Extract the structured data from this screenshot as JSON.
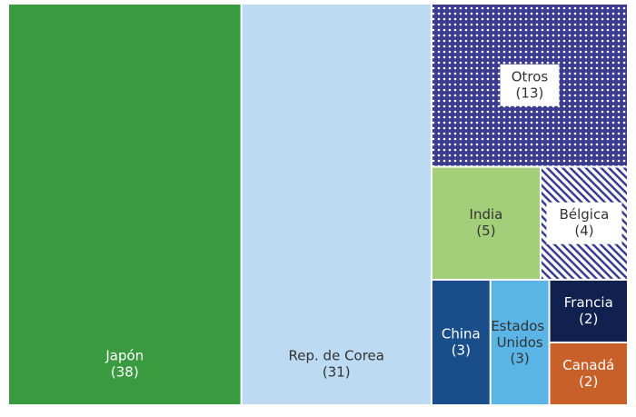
{
  "chart_data": {
    "type": "treemap",
    "categories": [
      "Japón",
      "Rep. de Corea",
      "Otros",
      "India",
      "Bélgica",
      "China",
      "Estados Unidos",
      "Francia",
      "Canadá"
    ],
    "values": [
      38,
      31,
      13,
      5,
      4,
      3,
      3,
      2,
      2
    ],
    "value_labels": [
      "(38)",
      "(31)",
      "(13)",
      "(5)",
      "(4)",
      "(3)",
      "(3)",
      "(2)",
      "(2)"
    ],
    "colors": [
      "#3a9a3f",
      "#bcdaf2",
      "#3b3b8f",
      "#a3cf7a",
      "#3b3b8f",
      "#1a4e8a",
      "#5ab4e6",
      "#10204f",
      "#c8602a"
    ],
    "patterns": [
      null,
      null,
      "dots",
      null,
      "stripes",
      null,
      null,
      null,
      null
    ]
  }
}
